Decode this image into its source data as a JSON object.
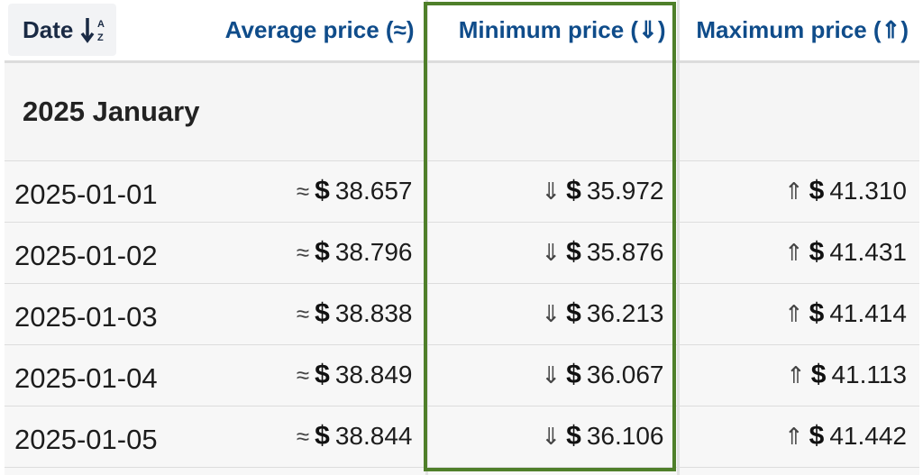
{
  "columns": {
    "date": "Date",
    "average": "Average price (≈)",
    "minimum": "Minimum price (⇓)",
    "maximum": "Maximum price (⇑)"
  },
  "group": "2025 January",
  "currency": "$",
  "symbols": {
    "avg": "≈",
    "min": "⇓",
    "max": "⇑"
  },
  "rows": [
    {
      "date": "2025-01-01",
      "avg": "38.657",
      "min": "35.972",
      "max": "41.310"
    },
    {
      "date": "2025-01-02",
      "avg": "38.796",
      "min": "35.876",
      "max": "41.431"
    },
    {
      "date": "2025-01-03",
      "avg": "38.838",
      "min": "36.213",
      "max": "41.414"
    },
    {
      "date": "2025-01-04",
      "avg": "38.849",
      "min": "36.067",
      "max": "41.113"
    },
    {
      "date": "2025-01-05",
      "avg": "38.844",
      "min": "36.106",
      "max": "41.442"
    }
  ],
  "colors": {
    "header_text": "#0f4c8a",
    "highlight_border": "#4f7f2a"
  },
  "icons": {
    "sort": "sort-az-down-icon"
  }
}
